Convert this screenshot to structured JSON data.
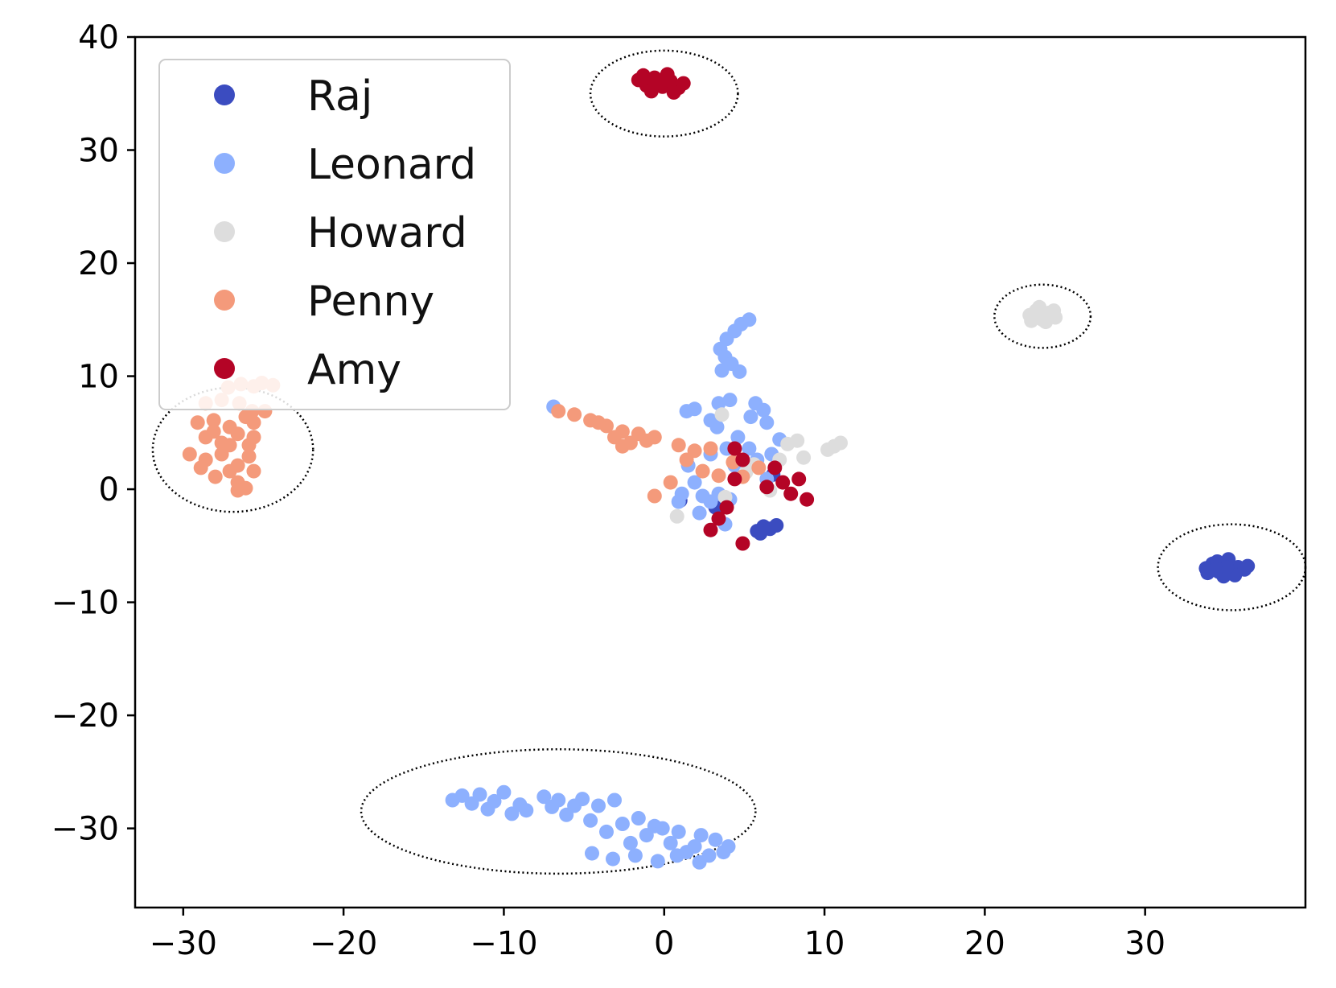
{
  "chart_data": {
    "type": "scatter",
    "title": "",
    "xlabel": "",
    "ylabel": "",
    "xlim": [
      -33,
      40
    ],
    "ylim": [
      -37,
      40
    ],
    "grid": false,
    "legend_placement": "top-left",
    "x_ticks": [
      {
        "value": -30,
        "label": "−30"
      },
      {
        "value": -20,
        "label": "−20"
      },
      {
        "value": -10,
        "label": "−10"
      },
      {
        "value": 0,
        "label": "0"
      },
      {
        "value": 10,
        "label": "10"
      },
      {
        "value": 20,
        "label": "20"
      },
      {
        "value": 30,
        "label": "30"
      }
    ],
    "y_ticks": [
      {
        "value": 40,
        "label": "40"
      },
      {
        "value": 30,
        "label": "30"
      },
      {
        "value": 20,
        "label": "20"
      },
      {
        "value": 10,
        "label": "10"
      },
      {
        "value": 0,
        "label": "0"
      },
      {
        "value": -10,
        "label": "−10"
      },
      {
        "value": -20,
        "label": "−20"
      },
      {
        "value": -30,
        "label": "−30"
      }
    ],
    "series": [
      {
        "name": "Raj",
        "color": "#3b4cc0",
        "points": [
          [
            33.8,
            -7.0
          ],
          [
            34.2,
            -6.6
          ],
          [
            34.6,
            -7.3
          ],
          [
            35.0,
            -6.7
          ],
          [
            35.4,
            -7.2
          ],
          [
            35.8,
            -6.9
          ],
          [
            36.2,
            -7.1
          ],
          [
            34.5,
            -6.4
          ],
          [
            35.2,
            -6.2
          ],
          [
            35.6,
            -7.6
          ],
          [
            34.9,
            -7.7
          ],
          [
            33.9,
            -7.4
          ],
          [
            36.4,
            -6.8
          ],
          [
            35.1,
            -6.9
          ],
          [
            34.4,
            -7.1
          ],
          [
            5.8,
            -3.7
          ],
          [
            6.2,
            -3.3
          ],
          [
            6.6,
            -3.5
          ],
          [
            7.0,
            -3.2
          ],
          [
            6.0,
            -3.9
          ],
          [
            1.0,
            -1.0
          ],
          [
            3.2,
            -1.6
          ],
          [
            6.8,
            1.3
          ]
        ]
      },
      {
        "name": "Leonard",
        "color": "#8db0fe",
        "points": [
          [
            -13.2,
            -27.5
          ],
          [
            -12.6,
            -27.1
          ],
          [
            -12.0,
            -27.8
          ],
          [
            -11.5,
            -27.0
          ],
          [
            -11.0,
            -28.3
          ],
          [
            -10.6,
            -27.6
          ],
          [
            -10.0,
            -26.8
          ],
          [
            -9.5,
            -28.7
          ],
          [
            -9.0,
            -27.9
          ],
          [
            -8.6,
            -28.4
          ],
          [
            -7.5,
            -27.2
          ],
          [
            -7.0,
            -28.1
          ],
          [
            -6.6,
            -27.5
          ],
          [
            -6.1,
            -28.8
          ],
          [
            -5.6,
            -28.0
          ],
          [
            -5.1,
            -27.4
          ],
          [
            -4.6,
            -29.3
          ],
          [
            -4.1,
            -28.0
          ],
          [
            -3.6,
            -30.3
          ],
          [
            -3.1,
            -27.5
          ],
          [
            -2.6,
            -29.6
          ],
          [
            -2.1,
            -31.3
          ],
          [
            -1.6,
            -29.1
          ],
          [
            -1.1,
            -30.6
          ],
          [
            -0.6,
            -29.8
          ],
          [
            -0.1,
            -30.0
          ],
          [
            0.4,
            -31.3
          ],
          [
            0.9,
            -30.3
          ],
          [
            1.4,
            -32.1
          ],
          [
            1.9,
            -31.6
          ],
          [
            2.3,
            -30.6
          ],
          [
            2.8,
            -32.4
          ],
          [
            3.2,
            -31.0
          ],
          [
            3.7,
            -32.1
          ],
          [
            4.0,
            -31.6
          ],
          [
            -4.5,
            -32.2
          ],
          [
            -3.2,
            -32.7
          ],
          [
            -1.8,
            -32.4
          ],
          [
            -0.4,
            -32.9
          ],
          [
            0.8,
            -32.4
          ],
          [
            2.2,
            -33.0
          ],
          [
            5.3,
            15.0
          ],
          [
            4.8,
            14.6
          ],
          [
            4.4,
            14.0
          ],
          [
            3.9,
            13.3
          ],
          [
            3.5,
            12.4
          ],
          [
            3.8,
            11.7
          ],
          [
            4.2,
            11.1
          ],
          [
            3.6,
            10.5
          ],
          [
            4.7,
            10.4
          ],
          [
            3.4,
            7.6
          ],
          [
            4.1,
            7.9
          ],
          [
            5.7,
            7.6
          ],
          [
            6.2,
            7.0
          ],
          [
            5.4,
            6.4
          ],
          [
            6.4,
            5.9
          ],
          [
            1.4,
            6.9
          ],
          [
            1.9,
            7.1
          ],
          [
            2.9,
            6.1
          ],
          [
            3.3,
            5.5
          ],
          [
            4.6,
            4.6
          ],
          [
            5.3,
            3.6
          ],
          [
            6.7,
            3.1
          ],
          [
            7.2,
            4.4
          ],
          [
            1.5,
            2.1
          ],
          [
            2.9,
            3.1
          ],
          [
            3.9,
            3.6
          ],
          [
            4.4,
            2.1
          ],
          [
            5.8,
            2.6
          ],
          [
            0.9,
            -1.1
          ],
          [
            2.4,
            -0.6
          ],
          [
            3.4,
            -0.4
          ],
          [
            1.9,
            0.6
          ],
          [
            2.9,
            -1.1
          ],
          [
            4.1,
            -0.9
          ],
          [
            6.4,
            0.9
          ],
          [
            -6.9,
            7.3
          ],
          [
            1.1,
            -0.4
          ],
          [
            3.8,
            -3.1
          ],
          [
            2.2,
            -2.1
          ]
        ]
      },
      {
        "name": "Howard",
        "color": "#dddddd",
        "points": [
          [
            22.8,
            15.4
          ],
          [
            23.2,
            15.8
          ],
          [
            23.6,
            15.0
          ],
          [
            24.0,
            15.6
          ],
          [
            24.4,
            15.2
          ],
          [
            23.4,
            16.1
          ],
          [
            23.8,
            14.8
          ],
          [
            22.9,
            14.9
          ],
          [
            24.3,
            15.8
          ],
          [
            23.5,
            15.4
          ],
          [
            10.2,
            3.5
          ],
          [
            10.6,
            3.8
          ],
          [
            11.0,
            4.1
          ],
          [
            8.3,
            4.3
          ],
          [
            7.7,
            4.0
          ],
          [
            8.7,
            2.8
          ],
          [
            7.2,
            2.6
          ],
          [
            5.1,
            1.5
          ],
          [
            6.6,
            -0.1
          ],
          [
            3.6,
            6.6
          ],
          [
            3.8,
            -0.7
          ],
          [
            0.8,
            -2.4
          ],
          [
            5.6,
            2.2
          ]
        ]
      },
      {
        "name": "Penny",
        "color": "#f49a7b",
        "points": [
          [
            -27.2,
            9.0
          ],
          [
            -26.4,
            9.3
          ],
          [
            -25.6,
            9.1
          ],
          [
            -25.1,
            9.4
          ],
          [
            -24.4,
            9.2
          ],
          [
            -28.6,
            7.6
          ],
          [
            -27.6,
            7.9
          ],
          [
            -26.5,
            7.6
          ],
          [
            -25.7,
            6.9
          ],
          [
            -24.9,
            6.9
          ],
          [
            -29.1,
            5.9
          ],
          [
            -28.1,
            6.1
          ],
          [
            -27.1,
            5.5
          ],
          [
            -26.1,
            6.4
          ],
          [
            -25.6,
            5.9
          ],
          [
            -28.6,
            4.6
          ],
          [
            -27.6,
            4.1
          ],
          [
            -26.6,
            4.9
          ],
          [
            -25.9,
            3.9
          ],
          [
            -29.6,
            3.1
          ],
          [
            -28.6,
            2.6
          ],
          [
            -27.6,
            3.1
          ],
          [
            -26.6,
            2.1
          ],
          [
            -25.9,
            2.9
          ],
          [
            -28.9,
            1.9
          ],
          [
            -28.0,
            1.1
          ],
          [
            -27.1,
            1.6
          ],
          [
            -26.6,
            0.6
          ],
          [
            -26.1,
            0.1
          ],
          [
            -25.6,
            1.6
          ],
          [
            -27.1,
            3.9
          ],
          [
            -28.1,
            5.1
          ],
          [
            -26.6,
            -0.1
          ],
          [
            -25.6,
            4.6
          ],
          [
            -6.6,
            6.9
          ],
          [
            -5.6,
            6.6
          ],
          [
            -4.6,
            6.1
          ],
          [
            -3.6,
            5.6
          ],
          [
            -2.6,
            5.1
          ],
          [
            -1.6,
            4.9
          ],
          [
            -0.6,
            4.6
          ],
          [
            -4.1,
            5.9
          ],
          [
            -3.1,
            4.6
          ],
          [
            -2.1,
            4.1
          ],
          [
            -1.1,
            4.3
          ],
          [
            0.9,
            3.9
          ],
          [
            1.9,
            3.4
          ],
          [
            2.9,
            3.6
          ],
          [
            -2.6,
            3.8
          ],
          [
            1.4,
            2.6
          ],
          [
            2.4,
            1.6
          ],
          [
            3.4,
            1.2
          ],
          [
            4.3,
            2.4
          ],
          [
            5.9,
            1.9
          ],
          [
            0.4,
            0.6
          ],
          [
            -0.6,
            -0.6
          ],
          [
            4.9,
            1.1
          ]
        ]
      },
      {
        "name": "Amy",
        "color": "#b40426",
        "points": [
          [
            -1.6,
            36.2
          ],
          [
            -1.1,
            35.7
          ],
          [
            -0.6,
            36.4
          ],
          [
            -0.1,
            35.6
          ],
          [
            0.4,
            36.1
          ],
          [
            0.9,
            35.5
          ],
          [
            -0.8,
            35.2
          ],
          [
            0.2,
            36.7
          ],
          [
            1.2,
            35.9
          ],
          [
            -1.3,
            36.6
          ],
          [
            0.6,
            35.1
          ],
          [
            -0.3,
            36.0
          ],
          [
            4.4,
            3.6
          ],
          [
            4.9,
            2.6
          ],
          [
            6.9,
            1.9
          ],
          [
            7.4,
            0.6
          ],
          [
            8.4,
            0.9
          ],
          [
            6.4,
            0.2
          ],
          [
            8.9,
            -0.9
          ],
          [
            7.9,
            -0.4
          ],
          [
            3.4,
            -2.6
          ],
          [
            2.9,
            -3.6
          ],
          [
            4.9,
            -4.8
          ],
          [
            4.4,
            0.9
          ],
          [
            3.9,
            -1.6
          ]
        ]
      }
    ],
    "annotations": [
      {
        "type": "dotted-ellipse",
        "label": "",
        "center": [
          0,
          35
        ],
        "radii": [
          4.6,
          3.8
        ]
      },
      {
        "type": "dotted-ellipse",
        "label": "",
        "center": [
          23.6,
          15.3
        ],
        "radii": [
          3.0,
          2.8
        ]
      },
      {
        "type": "dotted-ellipse",
        "label": "",
        "center": [
          -26.9,
          3.5
        ],
        "radii": [
          5.0,
          5.5
        ]
      },
      {
        "type": "dotted-ellipse",
        "label": "",
        "center": [
          35.4,
          -6.9
        ],
        "radii": [
          4.6,
          3.8
        ]
      },
      {
        "type": "dotted-ellipse",
        "label": "",
        "center": [
          -6.6,
          -28.5
        ],
        "radii": [
          12.3,
          5.5
        ]
      }
    ]
  }
}
